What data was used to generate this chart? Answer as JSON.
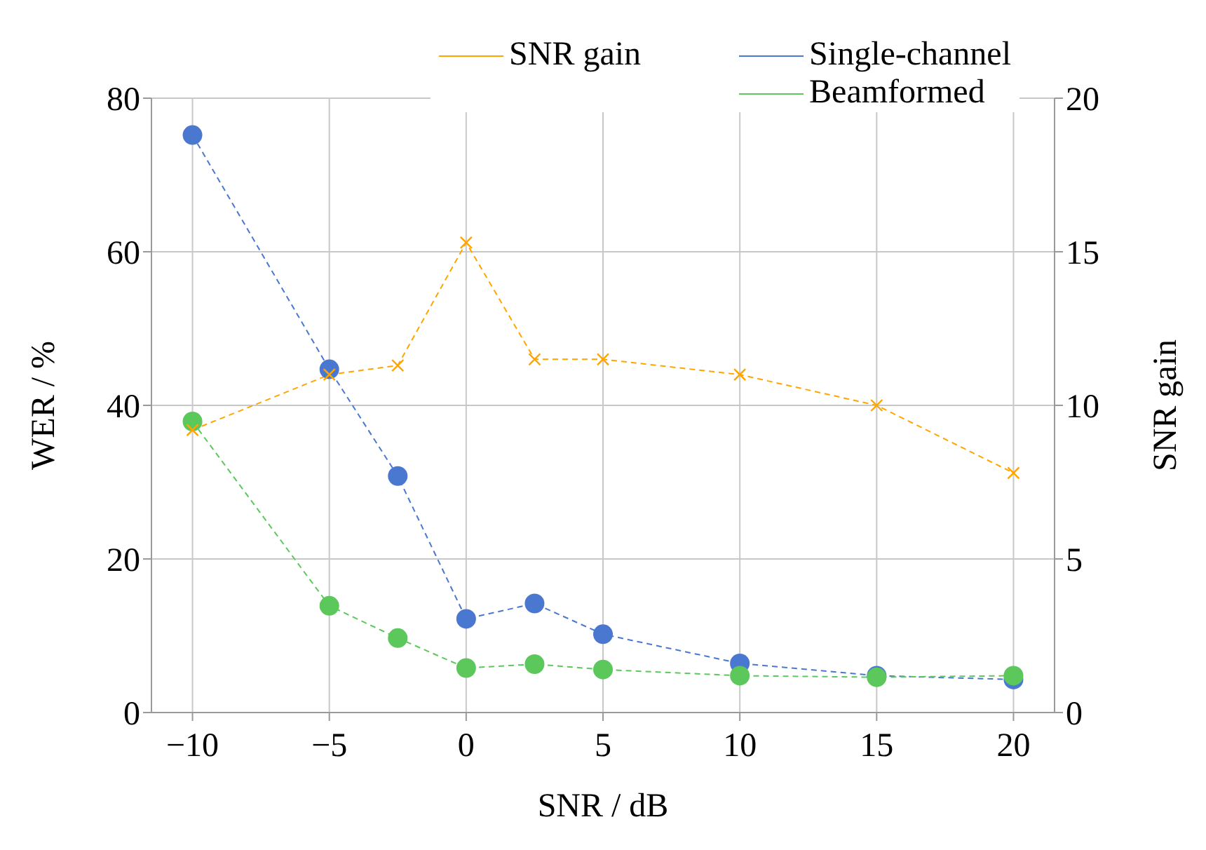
{
  "chart_data": {
    "type": "line",
    "xlabel": "SNR / dB",
    "ylabel": "WER / %",
    "y2label": "SNR gain",
    "x": [
      -10,
      -5,
      -2.5,
      0,
      2.5,
      5,
      10,
      15,
      20
    ],
    "series": [
      {
        "name": "SNR gain",
        "color": "#ffa500",
        "axis": "y2",
        "marker": "cross",
        "line_style": "dashed",
        "values": [
          9.2,
          11.0,
          11.3,
          15.3,
          11.5,
          11.5,
          11.0,
          10.0,
          7.8
        ]
      },
      {
        "name": "Single-channel",
        "color": "#4a78d0",
        "marker": "circle",
        "line_style": "dashed",
        "values": [
          75.2,
          44.7,
          30.8,
          12.2,
          14.2,
          10.2,
          6.4,
          4.8,
          4.3
        ]
      },
      {
        "name": "Beamformed",
        "color": "#5cc85c",
        "marker": "circle",
        "line_style": "dashed",
        "values": [
          37.9,
          13.9,
          9.7,
          5.8,
          6.3,
          5.6,
          4.8,
          4.6,
          4.8
        ]
      }
    ],
    "xlim": [
      -11.5,
      21.5
    ],
    "xticks": [
      -10,
      -5,
      0,
      5,
      10,
      15,
      20
    ],
    "ylim": [
      0,
      80
    ],
    "yticks": [
      0,
      20,
      40,
      60,
      80
    ],
    "y2lim": [
      0,
      20
    ],
    "y2ticks": [
      0,
      5,
      10,
      15,
      20
    ],
    "grid": true,
    "legend": "top right"
  }
}
